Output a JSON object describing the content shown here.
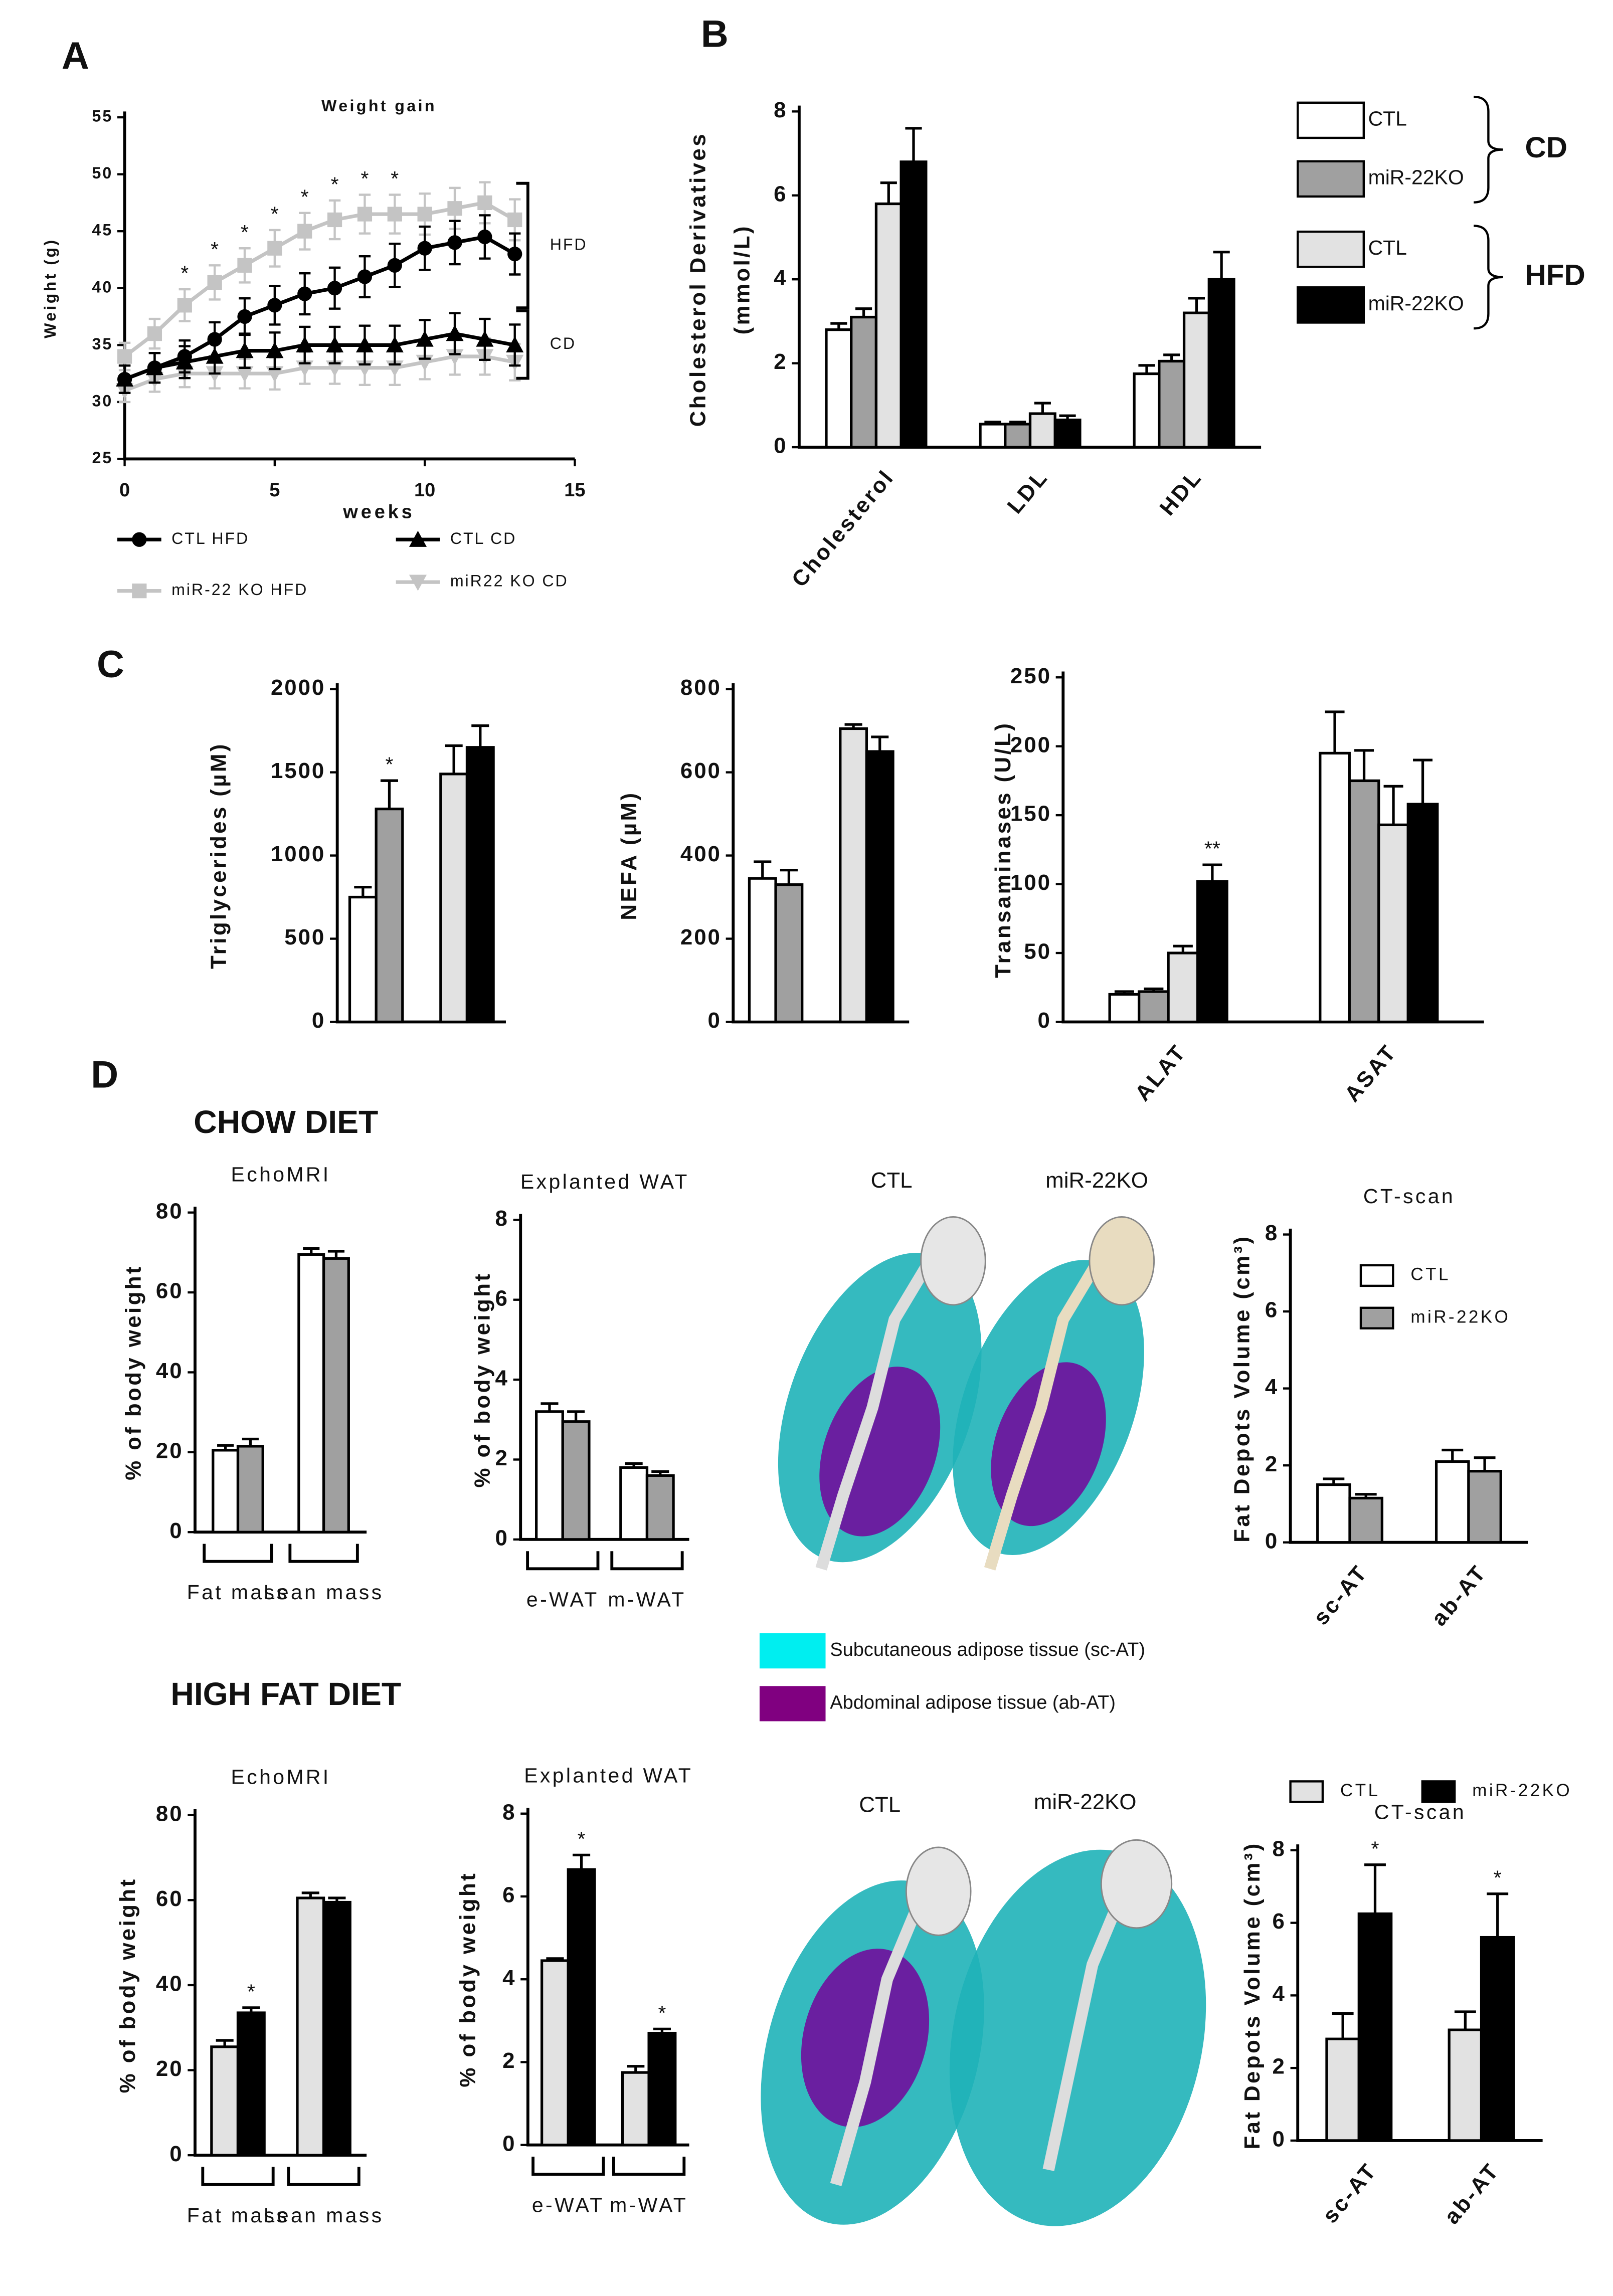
{
  "figure": {
    "panels": [
      "A",
      "B",
      "C",
      "D"
    ],
    "sections": [
      "CHOW DIET",
      "HIGH FAT DIET"
    ],
    "ct_labels": [
      [
        "CTL",
        "miR-22KO"
      ],
      [
        "CTL",
        "miR-22KO"
      ]
    ],
    "tissue_legend": [
      {
        "label": "Subcutaneous adipose tissue (sc-AT)",
        "color": "#00eef0"
      },
      {
        "label": "Abdominal adipose tissue (ab-AT)",
        "color": "#800080"
      }
    ]
  },
  "chart_data": [
    {
      "type": "line",
      "title": "Weight gain",
      "xlabel": "weeks",
      "ylabel": "Weight (g)",
      "x": [
        0,
        1,
        2,
        3,
        4,
        5,
        6,
        7,
        8,
        9,
        10,
        11,
        12,
        13
      ],
      "xlim": [
        0,
        15
      ],
      "xticks": [
        0,
        5,
        10,
        15
      ],
      "ylim": [
        25,
        55
      ],
      "yticks": [
        25,
        30,
        35,
        40,
        45,
        50,
        55
      ],
      "series": [
        {
          "name": "CTL HFD",
          "color": "#000000",
          "marker": "circle",
          "values": [
            32,
            33,
            34,
            35.5,
            37.5,
            38.5,
            39.5,
            40,
            41,
            42,
            43.5,
            44,
            44.5,
            43
          ],
          "errors": [
            1.2,
            1.3,
            1.4,
            1.5,
            1.6,
            1.7,
            1.8,
            1.8,
            1.8,
            1.9,
            1.9,
            1.9,
            1.9,
            1.8
          ]
        },
        {
          "name": "miR-22 KO HFD",
          "color": "#c4c4c4",
          "marker": "square",
          "values": [
            34,
            36,
            38.5,
            40.5,
            42,
            43.5,
            45,
            46,
            46.5,
            46.5,
            46.5,
            47,
            47.5,
            46
          ],
          "errors": [
            1.2,
            1.3,
            1.4,
            1.5,
            1.5,
            1.6,
            1.6,
            1.7,
            1.7,
            1.7,
            1.8,
            1.8,
            1.8,
            1.8
          ]
        },
        {
          "name": "CTL CD",
          "color": "#000000",
          "marker": "triangle",
          "values": [
            32,
            33,
            33.5,
            34,
            34.5,
            34.5,
            35,
            35,
            35,
            35,
            35.5,
            36,
            35.5,
            35
          ],
          "errors": [
            1.2,
            1.3,
            1.4,
            1.5,
            1.5,
            1.6,
            1.6,
            1.6,
            1.7,
            1.7,
            1.7,
            1.8,
            1.8,
            1.8
          ]
        },
        {
          "name": "miR22 KO CD",
          "color": "#c4c4c4",
          "marker": "triangle-down",
          "values": [
            31,
            32,
            32.5,
            32.5,
            32.5,
            32.5,
            33,
            33,
            33,
            33,
            33.5,
            34,
            34,
            33.5
          ],
          "errors": [
            1,
            1.1,
            1.2,
            1.3,
            1.3,
            1.4,
            1.4,
            1.4,
            1.5,
            1.5,
            1.5,
            1.6,
            1.6,
            1.6
          ]
        }
      ],
      "stars": {
        "label": "*",
        "x": [
          2,
          3,
          4,
          5,
          6,
          7,
          8,
          9
        ]
      },
      "bracket_labels": [
        "HFD",
        "CD"
      ]
    },
    {
      "type": "bar",
      "ylabel": [
        "Cholesterol Derivatives",
        "(mmol/L)"
      ],
      "categories": [
        "Cholesterol",
        "LDL",
        "HDL"
      ],
      "ylim": [
        0,
        8
      ],
      "yticks": [
        0,
        2,
        4,
        6,
        8
      ],
      "legend_groups": [
        "CD",
        "HFD"
      ],
      "series": [
        {
          "name": "CTL",
          "color": "#ffffff",
          "values": [
            2.8,
            0.55,
            1.75
          ],
          "errors": [
            0.15,
            0.05,
            0.2
          ]
        },
        {
          "name": "miR-22KO",
          "color": "#a0a0a0",
          "values": [
            3.1,
            0.55,
            2.05
          ],
          "errors": [
            0.2,
            0.05,
            0.15
          ]
        },
        {
          "name": "CTL",
          "color": "#e2e2e2",
          "values": [
            5.8,
            0.8,
            3.2
          ],
          "errors": [
            0.5,
            0.25,
            0.35
          ]
        },
        {
          "name": "miR-22KO",
          "color": "#000000",
          "values": [
            6.8,
            0.65,
            4.0
          ],
          "errors": [
            0.8,
            0.1,
            0.65
          ]
        }
      ]
    },
    {
      "type": "bar",
      "ylabel": "Triglycerides (µM)",
      "categories": [
        null
      ],
      "ylim": [
        0,
        2000
      ],
      "yticks": [
        0,
        500,
        1000,
        1500,
        2000
      ],
      "series": [
        {
          "color": "#ffffff",
          "values": [
            750
          ],
          "errors": [
            60
          ]
        },
        {
          "color": "#a0a0a0",
          "values": [
            1280
          ],
          "errors": [
            170
          ]
        },
        {
          "color": "#e2e2e2",
          "values": [
            1490
          ],
          "errors": [
            170
          ]
        },
        {
          "color": "#000000",
          "values": [
            1650
          ],
          "errors": [
            130
          ]
        }
      ],
      "stars": [
        {
          "label": "*",
          "series": 1,
          "category": 0
        }
      ]
    },
    {
      "type": "bar",
      "ylabel": "NEFA (µM)",
      "categories": [
        null
      ],
      "ylim": [
        0,
        800
      ],
      "yticks": [
        0,
        200,
        400,
        600,
        800
      ],
      "series": [
        {
          "color": "#ffffff",
          "values": [
            345
          ],
          "errors": [
            40
          ]
        },
        {
          "color": "#a0a0a0",
          "values": [
            330
          ],
          "errors": [
            35
          ]
        },
        {
          "color": "#e2e2e2",
          "values": [
            705
          ],
          "errors": [
            10
          ]
        },
        {
          "color": "#000000",
          "values": [
            650
          ],
          "errors": [
            35
          ]
        }
      ]
    },
    {
      "type": "bar",
      "ylabel": "Transaminases (U/L)",
      "categories": [
        "ALAT",
        "ASAT"
      ],
      "ylim": [
        0,
        250
      ],
      "yticks": [
        0,
        50,
        100,
        150,
        200,
        250
      ],
      "series": [
        {
          "color": "#ffffff",
          "values": [
            20,
            195
          ],
          "errors": [
            2,
            30
          ]
        },
        {
          "color": "#a0a0a0",
          "values": [
            22,
            175
          ],
          "errors": [
            2,
            22
          ]
        },
        {
          "color": "#e2e2e2",
          "values": [
            50,
            143
          ],
          "errors": [
            5,
            28
          ]
        },
        {
          "color": "#000000",
          "values": [
            102,
            158
          ],
          "errors": [
            12,
            32
          ]
        }
      ],
      "stars": [
        {
          "label": "**",
          "series": 3,
          "category": 0
        }
      ]
    },
    {
      "type": "bar",
      "title": "EchoMRI",
      "ylabel": "% of body weight",
      "categories": [
        "Fat mass",
        "Lean mass"
      ],
      "ylim": [
        0,
        80
      ],
      "yticks": [
        0,
        20,
        40,
        60,
        80
      ],
      "series": [
        {
          "color": "#ffffff",
          "values": [
            20.5,
            69.5
          ],
          "errors": [
            1.2,
            1.5
          ]
        },
        {
          "color": "#a0a0a0",
          "values": [
            21.5,
            68.5
          ],
          "errors": [
            1.8,
            1.8
          ]
        }
      ]
    },
    {
      "type": "bar",
      "title": "Explanted WAT",
      "ylabel": "% of body weight",
      "categories": [
        "e-WAT",
        "m-WAT"
      ],
      "ylim": [
        0,
        8
      ],
      "yticks": [
        0,
        2,
        4,
        6,
        8
      ],
      "series": [
        {
          "color": "#ffffff",
          "values": [
            3.2,
            1.8
          ],
          "errors": [
            0.2,
            0.1
          ]
        },
        {
          "color": "#a0a0a0",
          "values": [
            2.95,
            1.6
          ],
          "errors": [
            0.25,
            0.1
          ]
        }
      ]
    },
    {
      "type": "bar",
      "title": "CT-scan",
      "ylabel": "Fat Depots Volume (cm³)",
      "categories": [
        "sc-AT",
        "ab-AT"
      ],
      "ylim": [
        0,
        8
      ],
      "yticks": [
        0,
        2,
        4,
        6,
        8
      ],
      "series": [
        {
          "name": "CTL",
          "color": "#ffffff",
          "values": [
            1.5,
            2.1
          ],
          "errors": [
            0.15,
            0.3
          ]
        },
        {
          "name": "miR-22KO",
          "color": "#a0a0a0",
          "values": [
            1.15,
            1.85
          ],
          "errors": [
            0.1,
            0.35
          ]
        }
      ]
    },
    {
      "type": "bar",
      "title": "EchoMRI",
      "ylabel": "% of body weight",
      "categories": [
        "Fat mass",
        "Lean mass"
      ],
      "ylim": [
        0,
        80
      ],
      "yticks": [
        0,
        20,
        40,
        60,
        80
      ],
      "series": [
        {
          "color": "#e2e2e2",
          "values": [
            25.5,
            60.5
          ],
          "errors": [
            1.5,
            1.2
          ]
        },
        {
          "color": "#000000",
          "values": [
            33.5,
            59.5
          ],
          "errors": [
            1.2,
            1.0
          ]
        }
      ],
      "stars": [
        {
          "label": "*",
          "series": 1,
          "category": 0
        }
      ]
    },
    {
      "type": "bar",
      "title": "Explanted WAT",
      "ylabel": "% of body weight",
      "categories": [
        "e-WAT",
        "m-WAT"
      ],
      "ylim": [
        0,
        8
      ],
      "yticks": [
        0,
        2,
        4,
        6,
        8
      ],
      "series": [
        {
          "color": "#e2e2e2",
          "values": [
            4.45,
            1.75
          ],
          "errors": [
            0.05,
            0.15
          ]
        },
        {
          "color": "#000000",
          "values": [
            6.65,
            2.7
          ],
          "errors": [
            0.35,
            0.1
          ]
        }
      ],
      "stars": [
        {
          "label": "*",
          "series": 1,
          "category": 0
        },
        {
          "label": "*",
          "series": 1,
          "category": 1
        }
      ]
    },
    {
      "type": "bar",
      "title": "CT-scan",
      "ylabel": "Fat Depots Volume (cm³)",
      "categories": [
        "sc-AT",
        "ab-AT"
      ],
      "ylim": [
        0,
        8
      ],
      "yticks": [
        0,
        2,
        4,
        6,
        8
      ],
      "series": [
        {
          "name": "CTL",
          "color": "#e2e2e2",
          "values": [
            2.8,
            3.05
          ],
          "errors": [
            0.7,
            0.5
          ]
        },
        {
          "name": "miR-22KO",
          "color": "#000000",
          "values": [
            6.25,
            5.6
          ],
          "errors": [
            1.35,
            1.2
          ]
        }
      ],
      "stars": [
        {
          "label": "*",
          "series": 1,
          "category": 0
        },
        {
          "label": "*",
          "series": 1,
          "category": 1
        }
      ]
    }
  ]
}
